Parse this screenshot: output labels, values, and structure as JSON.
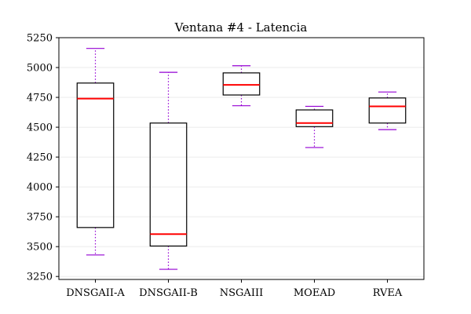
{
  "chart_data": {
    "type": "box",
    "title": "Ventana #4 - Latencia",
    "xlabel": "",
    "ylabel": "",
    "ylim": [
      3225,
      5250
    ],
    "yticks": [
      3250,
      3500,
      3750,
      4000,
      4250,
      4500,
      4750,
      5000,
      5250
    ],
    "grid": "horizontal",
    "colors": {
      "box": "#000000",
      "median": "#ff0000",
      "whisker": "#9400d3",
      "grid": "#ebebeb"
    },
    "categories": [
      "DNSGAII-A",
      "DNSGAII-B",
      "NSGAIII",
      "MOEAD",
      "RVEA"
    ],
    "boxes": [
      {
        "name": "DNSGAII-A",
        "min": 3430,
        "q1": 3660,
        "median": 4740,
        "q3": 4870,
        "max": 5160
      },
      {
        "name": "DNSGAII-B",
        "min": 3310,
        "q1": 3505,
        "median": 3605,
        "q3": 4535,
        "max": 4960
      },
      {
        "name": "NSGAIII",
        "min": 4680,
        "q1": 4770,
        "median": 4855,
        "q3": 4955,
        "max": 5015
      },
      {
        "name": "MOEAD",
        "min": 4330,
        "q1": 4505,
        "median": 4535,
        "q3": 4645,
        "max": 4675
      },
      {
        "name": "RVEA",
        "min": 4480,
        "q1": 4535,
        "median": 4675,
        "q3": 4745,
        "max": 4795
      }
    ]
  }
}
